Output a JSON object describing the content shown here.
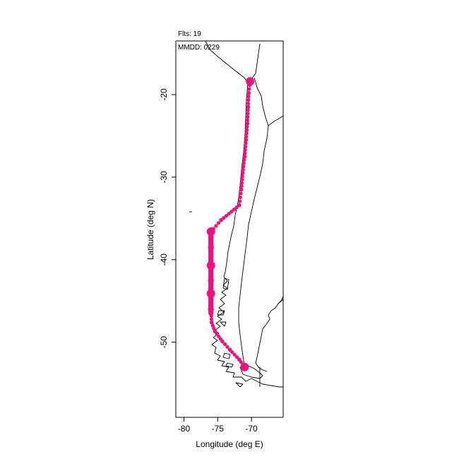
{
  "annotations": {
    "flights": "Flts: 19",
    "mmdd": "MMDD: 0229"
  },
  "axes": {
    "xlabel": "Longitude (deg E)",
    "ylabel": "Latitude (deg N)",
    "xlim": [
      -81.2,
      -65.3
    ],
    "ylim": [
      -59.1,
      -13.5
    ],
    "x_ticks": [
      {
        "value": -80,
        "label": "-80"
      },
      {
        "value": -75,
        "label": "-75"
      },
      {
        "value": -70,
        "label": "-70"
      }
    ],
    "y_ticks": [
      {
        "value": -20,
        "label": "-20"
      },
      {
        "value": -30,
        "label": "-30"
      },
      {
        "value": -40,
        "label": "-40"
      },
      {
        "value": -50,
        "label": "-50"
      }
    ]
  },
  "colors": {
    "track": "#f0107f",
    "coastline": "#000000",
    "frame": "#000000"
  },
  "chart_data": {
    "type": "scatter",
    "title": "",
    "xlabel": "Longitude (deg E)",
    "ylabel": "Latitude (deg N)",
    "xlim": [
      -81.2,
      -65.3
    ],
    "ylim": [
      -59.1,
      -13.5
    ],
    "grid": false,
    "legend": "none",
    "series": [
      {
        "color": "#f0107f",
        "points": [
          {
            "lon": -70.2,
            "lat": -18.4,
            "count": 5
          },
          {
            "lon": -70.4,
            "lat": -19.8,
            "count": 1
          },
          {
            "lon": -70.5,
            "lat": -21.5,
            "count": 1
          },
          {
            "lon": -70.6,
            "lat": -23.5,
            "count": 1
          },
          {
            "lon": -70.8,
            "lat": -25.5,
            "count": 1
          },
          {
            "lon": -71.0,
            "lat": -27.5,
            "count": 1
          },
          {
            "lon": -71.3,
            "lat": -29.5,
            "count": 1
          },
          {
            "lon": -71.5,
            "lat": -31.5,
            "count": 1
          },
          {
            "lon": -71.8,
            "lat": -33.4,
            "count": 1
          },
          {
            "lon": -74.5,
            "lat": -35.2,
            "count": 1
          },
          {
            "lon": -76.0,
            "lat": -36.6,
            "count": 5
          },
          {
            "lon": -76.0,
            "lat": -38.5,
            "count": 2
          },
          {
            "lon": -76.0,
            "lat": -40.7,
            "count": 5
          },
          {
            "lon": -76.0,
            "lat": -42.5,
            "count": 2
          },
          {
            "lon": -76.0,
            "lat": -44.1,
            "count": 5
          },
          {
            "lon": -76.0,
            "lat": -46.0,
            "count": 2
          },
          {
            "lon": -75.9,
            "lat": -47.6,
            "count": 1
          },
          {
            "lon": -75.4,
            "lat": -48.7,
            "count": 1
          },
          {
            "lon": -74.3,
            "lat": -49.9,
            "count": 1
          },
          {
            "lon": -73.2,
            "lat": -50.9,
            "count": 1
          },
          {
            "lon": -71.8,
            "lat": -52.1,
            "count": 1
          },
          {
            "lon": -71.0,
            "lat": -53.0,
            "count": 5
          }
        ]
      }
    ]
  }
}
